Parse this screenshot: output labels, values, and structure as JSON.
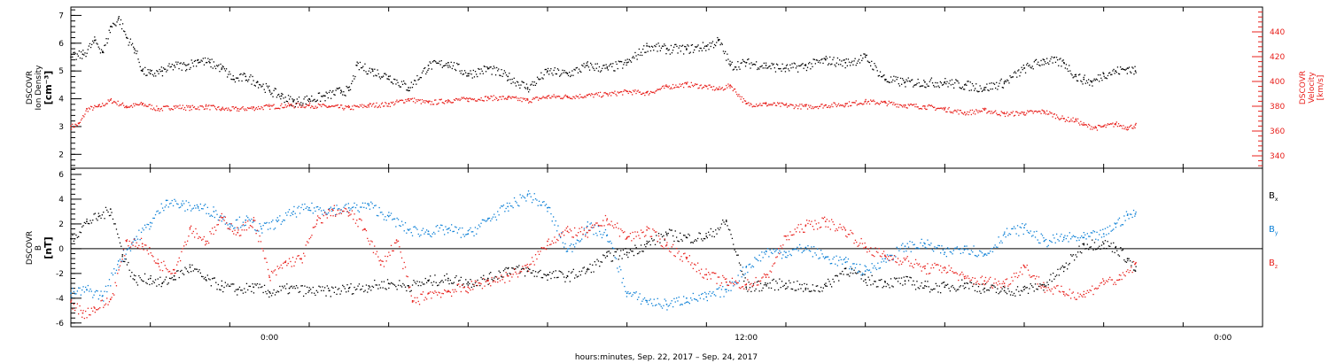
{
  "xlabel": "hours:minutes, Sep. 22, 2017 – Sep. 24, 2017",
  "colors": {
    "black": "#000000",
    "red": "#e8201c",
    "blue": "#0a7fd6"
  },
  "chart_data": [
    {
      "type": "scatter",
      "panel": "top",
      "ylabel_left": [
        "DSCOVR",
        "Ion Density",
        "[cm⁻³]"
      ],
      "ylabel_right": [
        "DSCOVR",
        "Velocity",
        "[km/s]"
      ],
      "x_range_hours": [
        -5,
        25
      ],
      "x_ticks": [
        {
          "x": 0,
          "label": "0:00"
        },
        {
          "x": 12,
          "label": "12:00"
        },
        {
          "x": 24,
          "label": "0:00"
        }
      ],
      "y_left": {
        "lim": [
          1.5,
          7.3
        ],
        "ticks": [
          2,
          3,
          4,
          5,
          6,
          7
        ]
      },
      "y_right": {
        "lim": [
          330,
          460
        ],
        "ticks": [
          340,
          360,
          380,
          400,
          420,
          440
        ]
      },
      "series": [
        {
          "key": "density",
          "axis": "left",
          "color": "#000000",
          "x": [
            -5,
            -4.7,
            -4.4,
            -4.2,
            -4,
            -3.8,
            -3.6,
            -3.4,
            -3.2,
            -3,
            -2.7,
            -2.4,
            -2.1,
            -1.8,
            -1.5,
            -1.2,
            -0.9,
            -0.6,
            -0.3,
            0,
            0.3,
            0.6,
            1,
            1.4,
            1.8,
            2,
            2.2,
            2.6,
            3,
            3.5,
            4,
            4.5,
            5,
            5.5,
            6,
            6.5,
            7,
            7.5,
            8,
            8.5,
            9,
            9.5,
            10,
            10.5,
            11,
            11.3,
            11.6,
            12,
            12.5,
            13,
            13.5,
            14,
            14.5,
            15,
            15.5,
            16,
            16.5,
            17,
            17.5,
            18,
            18.5,
            19,
            19.5,
            20,
            20.3,
            20.5,
            20.7,
            21,
            21.3,
            21.6,
            21.8
          ],
          "y": [
            5.5,
            5.6,
            6.1,
            5.7,
            6.6,
            6.9,
            6.2,
            5.8,
            5,
            4.9,
            5,
            5.2,
            5.2,
            5.4,
            5.3,
            5.1,
            4.7,
            4.8,
            4.6,
            4.3,
            4.1,
            3.9,
            4,
            4.1,
            4.3,
            4.3,
            5.2,
            5,
            4.8,
            4.4,
            5.2,
            5.3,
            4.9,
            5.1,
            4.8,
            4.4,
            5,
            4.9,
            5.2,
            5.1,
            5.3,
            5.9,
            5.8,
            5.8,
            5.9,
            6.1,
            5.2,
            5.3,
            5.2,
            5.1,
            5.2,
            5.4,
            5.3,
            5.5,
            4.7,
            4.6,
            4.6,
            4.6,
            4.5,
            4.4,
            4.6,
            5.1,
            5.4,
            5.3,
            4.8,
            4.7,
            4.6,
            4.9,
            5,
            5.1,
            5
          ]
        },
        {
          "key": "velocity",
          "axis": "right",
          "color": "#e8201c",
          "x": [
            -5,
            -4.8,
            -4.6,
            -4.3,
            -4,
            -3.6,
            -3.2,
            -2.8,
            -2.4,
            -2,
            -1.6,
            -1.2,
            -0.8,
            -0.4,
            0,
            0.5,
            1,
            1.5,
            2,
            2.5,
            3,
            3.5,
            4,
            4.5,
            5,
            5.5,
            6,
            6.5,
            7,
            7.5,
            8,
            8.5,
            9,
            9.5,
            10,
            10.5,
            11,
            11.3,
            11.6,
            12,
            12.5,
            13,
            13.5,
            14,
            14.5,
            15,
            15.5,
            16,
            16.5,
            17,
            17.5,
            18,
            18.5,
            19,
            19.5,
            20,
            20.3,
            20.5,
            20.8,
            21,
            21.3,
            21.6,
            21.8
          ],
          "y": [
            364,
            366,
            378,
            380,
            385,
            380,
            382,
            378,
            380,
            379,
            380,
            378,
            378,
            379,
            380,
            381,
            381,
            380,
            379,
            381,
            382,
            386,
            383,
            385,
            386,
            387,
            387,
            385,
            388,
            388,
            389,
            390,
            392,
            391,
            396,
            398,
            396,
            394,
            397,
            382,
            382,
            381,
            380,
            381,
            382,
            384,
            383,
            381,
            380,
            378,
            375,
            377,
            374,
            375,
            376,
            370,
            369,
            365,
            363,
            364,
            366,
            363,
            365
          ]
        }
      ]
    },
    {
      "type": "scatter",
      "panel": "bottom",
      "ylabel_left": [
        "DSCOVR",
        "B",
        "[nT]"
      ],
      "x_range_hours": [
        -5,
        25
      ],
      "y": {
        "lim": [
          -6.3,
          6.5
        ],
        "ticks": [
          -6,
          -4,
          -2,
          0,
          2,
          4,
          6
        ]
      },
      "zero_line": true,
      "legend_labels": [
        "B",
        "B",
        "B"
      ],
      "legend_subscripts": [
        "x",
        "y",
        "z"
      ],
      "series": [
        {
          "key": "bx",
          "color": "#000000",
          "x": [
            -5,
            -4.6,
            -4.3,
            -4,
            -3.7,
            -3.4,
            -3,
            -2.7,
            -2.4,
            -2,
            -1.6,
            -1.2,
            -0.8,
            -0.4,
            0,
            0.5,
            1,
            1.5,
            2,
            2.5,
            3,
            3.5,
            4,
            4.5,
            5,
            5.5,
            6,
            6.5,
            7,
            7.5,
            8,
            8.5,
            9,
            9.5,
            10,
            10.5,
            11,
            11.5,
            12,
            12.5,
            13,
            13.5,
            14,
            14.5,
            15,
            15.5,
            16,
            16.5,
            17,
            17.5,
            18,
            18.5,
            19,
            19.5,
            20,
            20.5,
            21,
            21.3,
            21.6,
            21.8
          ],
          "y": [
            0.8,
            2.2,
            2.6,
            3.2,
            -0.5,
            -2.5,
            -2.4,
            -2.8,
            -2.2,
            -1.5,
            -2.5,
            -3,
            -3.3,
            -3.1,
            -3.5,
            -3.2,
            -3.4,
            -3.4,
            -3.2,
            -3,
            -2.8,
            -3,
            -2.6,
            -2.4,
            -2.7,
            -2.4,
            -1.6,
            -1.8,
            -2.1,
            -2.2,
            -1.7,
            -0.6,
            -0.3,
            0.4,
            1.2,
            0.9,
            1,
            2.2,
            -3.1,
            -2.9,
            -2.8,
            -3.2,
            -3,
            -1.6,
            -2.5,
            -2.7,
            -2.6,
            -3,
            -3.1,
            -2.8,
            -3.2,
            -3.4,
            -3.3,
            -2.9,
            -1.5,
            0.4,
            0.4,
            0.1,
            -0.8,
            -1.8
          ]
        },
        {
          "key": "by",
          "color": "#0a7fd6",
          "x": [
            -5,
            -4.6,
            -4.2,
            -3.8,
            -3.4,
            -3,
            -2.6,
            -2.2,
            -1.8,
            -1.4,
            -1,
            -0.6,
            -0.2,
            0.2,
            0.6,
            1,
            1.5,
            2,
            2.5,
            3,
            3.5,
            4,
            4.5,
            5,
            5.5,
            6,
            6.5,
            7,
            7.5,
            8,
            8.5,
            9,
            9.5,
            10,
            10.5,
            11,
            11.5,
            12,
            12.5,
            13,
            13.5,
            14,
            14.5,
            15,
            15.5,
            16,
            16.5,
            17,
            17.5,
            18,
            18.5,
            19,
            19.5,
            20,
            20.5,
            21,
            21.3,
            21.6,
            21.8
          ],
          "y": [
            -3.6,
            -3.3,
            -3.8,
            -1,
            0.8,
            2.1,
            3.9,
            3.5,
            3.4,
            3,
            2,
            2.3,
            1.6,
            2.2,
            3,
            3.3,
            3.2,
            3.3,
            3.5,
            2.6,
            1.5,
            1.4,
            1.6,
            1.2,
            2.4,
            3.4,
            4.4,
            3.3,
            -0.2,
            1.8,
            1.1,
            -3.6,
            -4.2,
            -4.5,
            -4,
            -3.9,
            -3.3,
            -1.5,
            -0.2,
            -0.3,
            0.1,
            -0.7,
            -1.1,
            -1.8,
            -0.8,
            0.2,
            0.4,
            -0.3,
            0.2,
            -0.5,
            1.2,
            1.7,
            0.6,
            0.9,
            0.9,
            1.2,
            2,
            2.7,
            2.8
          ]
        },
        {
          "key": "bz",
          "color": "#e8201c",
          "x": [
            -5,
            -4.7,
            -4.4,
            -4,
            -3.6,
            -3.2,
            -2.8,
            -2.4,
            -2,
            -1.6,
            -1.2,
            -0.8,
            -0.4,
            0,
            0.4,
            0.8,
            1.2,
            1.6,
            2,
            2.4,
            2.8,
            3.2,
            3.6,
            4,
            4.5,
            5,
            5.5,
            6,
            6.5,
            7,
            7.5,
            8,
            8.5,
            9,
            9.5,
            10,
            10.5,
            11,
            11.5,
            12,
            12.5,
            13,
            13.5,
            14,
            14.5,
            15,
            15.5,
            16,
            16.5,
            17,
            17.5,
            18,
            18.5,
            19,
            19.5,
            20,
            20.5,
            21,
            21.4,
            21.8
          ],
          "y": [
            -4.3,
            -5.2,
            -4.8,
            -4.1,
            0.6,
            0.4,
            -1.2,
            -1.7,
            1.7,
            0.6,
            2.5,
            1.3,
            2.3,
            -2.3,
            -1.1,
            -0.8,
            2.3,
            3.1,
            2.9,
            1.6,
            -1.3,
            0.7,
            -4.3,
            -3.6,
            -3.4,
            -3.1,
            -2.6,
            -2.2,
            -1.5,
            0.6,
            1.4,
            1.3,
            2.4,
            0.9,
            1.5,
            0.3,
            -0.8,
            -2.1,
            -2.7,
            -2.9,
            -2.3,
            1,
            1.9,
            2.2,
            1.5,
            0.1,
            -0.6,
            -0.9,
            -1.6,
            -1.5,
            -2.4,
            -2.6,
            -2.8,
            -1.4,
            -3.1,
            -3.5,
            -3.7,
            -2.6,
            -2.5,
            -1.2
          ]
        }
      ]
    }
  ]
}
